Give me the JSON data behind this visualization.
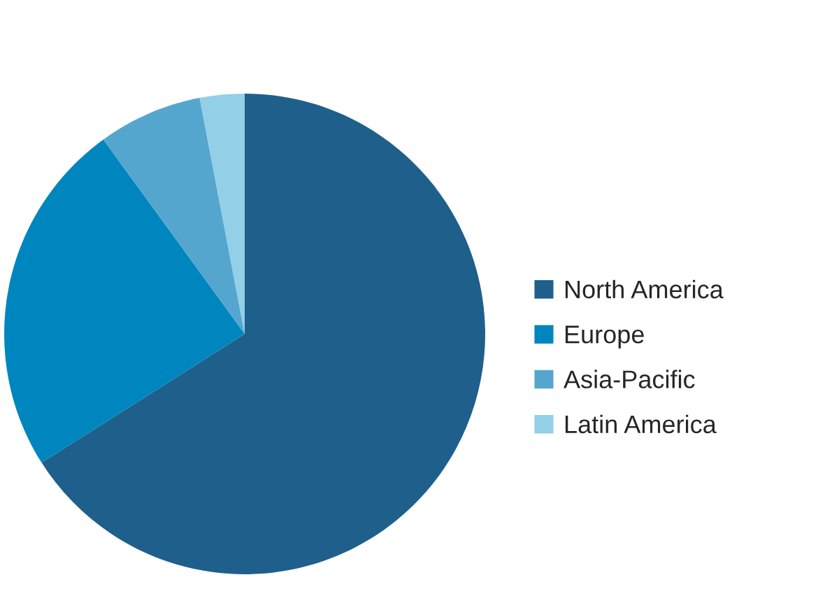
{
  "chart_data": {
    "type": "pie",
    "categories": [
      "North America",
      "Europe",
      "Asia-Pacific",
      "Latin America"
    ],
    "values": [
      66,
      24,
      7,
      3
    ],
    "colors": [
      "#1f5f8b",
      "#0086be",
      "#55a6cf",
      "#93cfe6"
    ],
    "legend": "right"
  }
}
